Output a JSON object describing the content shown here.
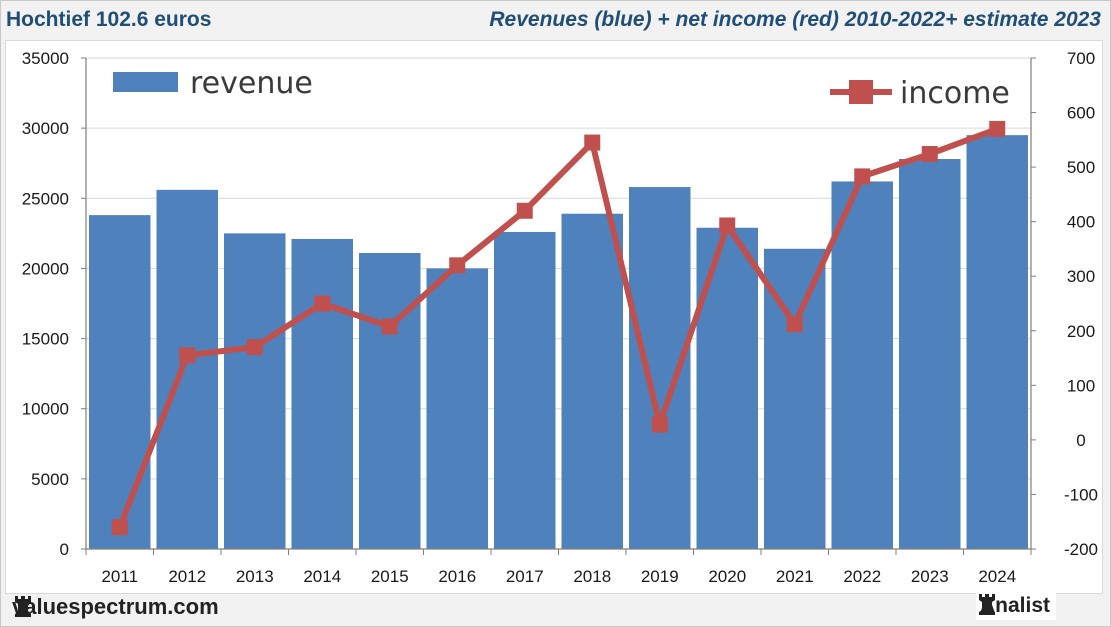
{
  "header": {
    "left_title": "Hochtief 102.6 euros",
    "right_title": "Revenues (blue) + net income (red) 2010-2022+ estimate 2023"
  },
  "footer": {
    "brand": "valuespectrum.com",
    "brand_icon": "rook-icon",
    "badge": "Analist",
    "badge_icon": "rook-icon"
  },
  "colors": {
    "bar": "#4f81bd",
    "line": "#c0504d",
    "grid": "#d9d9d9",
    "axis": "#7f7f7f"
  },
  "chart_data": {
    "type": "bar+line",
    "title": "Revenues (blue) + net income (red) 2010-2022+ estimate 2023",
    "categories": [
      "2011",
      "2012",
      "2013",
      "2014",
      "2015",
      "2016",
      "2017",
      "2018",
      "2019",
      "2020",
      "2021",
      "2022",
      "2023",
      "2024"
    ],
    "series": [
      {
        "name": "revenue",
        "type": "bar",
        "axis": "left",
        "values": [
          23800,
          25600,
          22500,
          22100,
          21100,
          20000,
          22600,
          23900,
          25800,
          22900,
          21400,
          26200,
          27800,
          29500
        ]
      },
      {
        "name": "income",
        "type": "line",
        "axis": "right",
        "values": [
          -160,
          155,
          170,
          250,
          208,
          320,
          420,
          545,
          28,
          393,
          212,
          483,
          524,
          570
        ]
      }
    ],
    "y_left": {
      "min": 0,
      "max": 35000,
      "step": 5000,
      "ticks": [
        "0",
        "5000",
        "10000",
        "15000",
        "20000",
        "25000",
        "30000",
        "35000"
      ]
    },
    "y_right": {
      "min": -200,
      "max": 700,
      "step": 100,
      "ticks": [
        "-200",
        "-100",
        "0",
        "100",
        "200",
        "300",
        "400",
        "500",
        "600",
        "700"
      ]
    },
    "legend": [
      {
        "label": "revenue",
        "position": "top-left"
      },
      {
        "label": "income",
        "position": "top-right"
      }
    ],
    "grid": true
  }
}
